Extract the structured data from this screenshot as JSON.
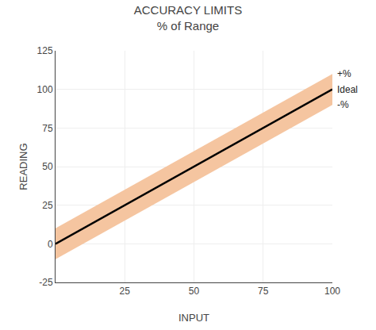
{
  "chart_data": {
    "type": "line",
    "title": "ACCURACY LIMITS",
    "subtitle": "% of Range",
    "x_label": "INPUT",
    "y_label": "READING",
    "x": [
      0,
      100
    ],
    "series": [
      {
        "type": "area",
        "color": "#f5c5a0",
        "lower": [
          -10,
          90
        ],
        "upper": [
          10,
          110
        ]
      },
      {
        "type": "line",
        "color": "#000000",
        "values": [
          0,
          100
        ]
      }
    ],
    "annotations": [
      {
        "text": "+%",
        "x": 100,
        "y": 110
      },
      {
        "text": "Ideal",
        "x": 100,
        "y": 100
      },
      {
        "text": "-%",
        "x": 100,
        "y": 90
      }
    ],
    "xlim": [
      0,
      100
    ],
    "ylim": [
      -25,
      125
    ],
    "xticks": [
      25,
      50,
      75,
      100
    ],
    "yticks": [
      -25,
      0,
      25,
      50,
      75,
      100,
      125
    ],
    "grid": true
  }
}
